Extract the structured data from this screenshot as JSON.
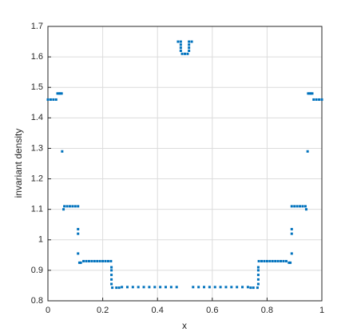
{
  "chart_data": {
    "type": "scatter",
    "x_label": "x",
    "y_label": "invariant density",
    "xlim": [
      0,
      1
    ],
    "xticks": [
      0,
      0.2,
      0.4,
      0.6,
      0.8,
      1
    ],
    "ylim": [
      0.8,
      1.7
    ],
    "yticks": [
      0.8,
      0.9,
      1,
      1.1,
      1.2,
      1.3,
      1.4,
      1.5,
      1.6,
      1.7
    ],
    "grid": true,
    "color": "#0072bd",
    "x": [
      0,
      0.01,
      0.02,
      0.03,
      0.035,
      0.04,
      0.045,
      0.05,
      0.052,
      0.057,
      0.06,
      0.07,
      0.08,
      0.09,
      0.1,
      0.11,
      0.11,
      0.11,
      0.11,
      0.115,
      0.12,
      0.13,
      0.14,
      0.15,
      0.16,
      0.17,
      0.18,
      0.19,
      0.2,
      0.21,
      0.22,
      0.23,
      0.232,
      0.232,
      0.232,
      0.232,
      0.232,
      0.235,
      0.25,
      0.26,
      0.27,
      0.29,
      0.31,
      0.33,
      0.35,
      0.37,
      0.39,
      0.41,
      0.43,
      0.45,
      0.47,
      0.475,
      0.485,
      0.485,
      0.485,
      0.485,
      0.49,
      0.5,
      0.51,
      0.515,
      0.515,
      0.515,
      0.515,
      0.525,
      0.53,
      0.55,
      0.57,
      0.59,
      0.61,
      0.63,
      0.65,
      0.67,
      0.69,
      0.71,
      0.73,
      0.74,
      0.75,
      0.765,
      0.768,
      0.768,
      0.768,
      0.768,
      0.768,
      0.77,
      0.78,
      0.79,
      0.8,
      0.81,
      0.82,
      0.83,
      0.84,
      0.85,
      0.86,
      0.87,
      0.88,
      0.885,
      0.89,
      0.89,
      0.89,
      0.89,
      0.9,
      0.91,
      0.92,
      0.93,
      0.94,
      0.943,
      0.948,
      0.95,
      0.955,
      0.96,
      0.965,
      0.97,
      0.98,
      0.99,
      1
    ],
    "y": [
      1.46,
      1.46,
      1.46,
      1.46,
      1.48,
      1.48,
      1.48,
      1.48,
      1.29,
      1.1,
      1.11,
      1.11,
      1.11,
      1.11,
      1.11,
      1.11,
      1.035,
      1.02,
      0.955,
      0.925,
      0.925,
      0.93,
      0.93,
      0.93,
      0.93,
      0.93,
      0.93,
      0.93,
      0.93,
      0.93,
      0.93,
      0.93,
      0.91,
      0.9,
      0.885,
      0.87,
      0.855,
      0.843,
      0.843,
      0.843,
      0.845,
      0.845,
      0.845,
      0.845,
      0.845,
      0.845,
      0.845,
      0.845,
      0.845,
      0.845,
      0.845,
      1.65,
      1.65,
      1.64,
      1.63,
      1.62,
      1.61,
      1.61,
      1.61,
      1.62,
      1.63,
      1.64,
      1.65,
      1.65,
      0.845,
      0.845,
      0.845,
      0.845,
      0.845,
      0.845,
      0.845,
      0.845,
      0.845,
      0.845,
      0.845,
      0.843,
      0.843,
      0.843,
      0.855,
      0.87,
      0.885,
      0.9,
      0.91,
      0.93,
      0.93,
      0.93,
      0.93,
      0.93,
      0.93,
      0.93,
      0.93,
      0.93,
      0.93,
      0.93,
      0.925,
      0.925,
      0.955,
      1.02,
      1.035,
      1.11,
      1.11,
      1.11,
      1.11,
      1.11,
      1.11,
      1.1,
      1.29,
      1.48,
      1.48,
      1.48,
      1.48,
      1.46,
      1.46,
      1.46,
      1.46
    ]
  }
}
